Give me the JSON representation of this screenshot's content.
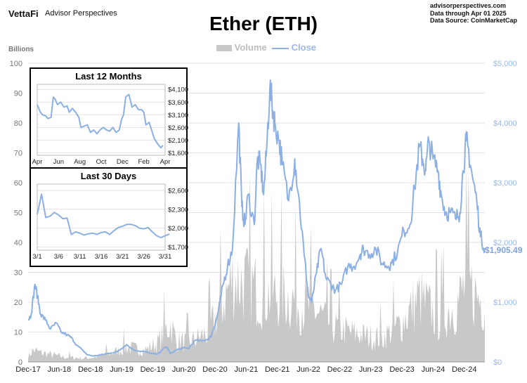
{
  "header": {
    "brand": "VettaFi",
    "brand_sub": "Advisor Perspectives",
    "source_lines": [
      "advisorperspectives.com",
      "Data through Apr 01 2025",
      "Data Source: CoinMarketCap"
    ]
  },
  "colors": {
    "volume": "#c8c8c8",
    "close": "#8cb0e4",
    "right_axis": "#9ab8e6",
    "left_axis": "#777777",
    "grid": "#e2e2e2"
  },
  "last_value_label": "$1,905.49",
  "chart_data": [
    {
      "id": "main",
      "type": "area",
      "title": "Ether (ETH)",
      "legend": [
        "Volume",
        "Close"
      ],
      "legend_position": "top-center",
      "grid": true,
      "ylabel_left": "Billions",
      "ylim_left": [
        0,
        100
      ],
      "yticks_left": [
        "0",
        "10",
        "20",
        "30",
        "40",
        "50",
        "60",
        "70",
        "80",
        "90",
        "100"
      ],
      "ylim_right": [
        0,
        5000
      ],
      "yticks_right": [
        "$0",
        "$1,000",
        "$2,000",
        "$3,000",
        "$4,000",
        "$5,000"
      ],
      "xlim": [
        2017.92,
        2025.25
      ],
      "xticks": [
        {
          "x": 2017.92,
          "label": "Dec-17"
        },
        {
          "x": 2018.42,
          "label": "Jun-18"
        },
        {
          "x": 2018.92,
          "label": "Dec-18"
        },
        {
          "x": 2019.42,
          "label": "Jun-19"
        },
        {
          "x": 2019.92,
          "label": "Dec-19"
        },
        {
          "x": 2020.42,
          "label": "Jun-20"
        },
        {
          "x": 2020.92,
          "label": "Dec-20"
        },
        {
          "x": 2021.42,
          "label": "Jun-21"
        },
        {
          "x": 2021.92,
          "label": "Dec-21"
        },
        {
          "x": 2022.42,
          "label": "Jun-22"
        },
        {
          "x": 2022.92,
          "label": "Dec-22"
        },
        {
          "x": 2023.42,
          "label": "Jun-23"
        },
        {
          "x": 2023.92,
          "label": "Dec-23"
        },
        {
          "x": 2024.42,
          "label": "Jun-24"
        },
        {
          "x": 2024.92,
          "label": "Dec-24"
        }
      ],
      "series": [
        {
          "name": "Close",
          "axis": "right",
          "x": [
            2017.92,
            2017.97,
            2018.03,
            2018.07,
            2018.12,
            2018.2,
            2018.28,
            2018.37,
            2018.45,
            2018.55,
            2018.62,
            2018.7,
            2018.78,
            2018.87,
            2018.96,
            2019.05,
            2019.15,
            2019.25,
            2019.35,
            2019.45,
            2019.5,
            2019.6,
            2019.7,
            2019.8,
            2019.9,
            2020.0,
            2020.1,
            2020.15,
            2020.2,
            2020.3,
            2020.4,
            2020.5,
            2020.6,
            2020.7,
            2020.8,
            2020.85,
            2020.9,
            2020.95,
            2021.0,
            2021.05,
            2021.12,
            2021.2,
            2021.3,
            2021.35,
            2021.4,
            2021.45,
            2021.55,
            2021.6,
            2021.65,
            2021.7,
            2021.75,
            2021.8,
            2021.85,
            2021.88,
            2021.95,
            2022.0,
            2022.1,
            2022.2,
            2022.26,
            2022.35,
            2022.42,
            2022.47,
            2022.55,
            2022.62,
            2022.7,
            2022.78,
            2022.85,
            2022.95,
            2023.05,
            2023.15,
            2023.25,
            2023.3,
            2023.4,
            2023.5,
            2023.6,
            2023.7,
            2023.75,
            2023.85,
            2023.95,
            2024.05,
            2024.12,
            2024.2,
            2024.25,
            2024.3,
            2024.35,
            2024.42,
            2024.5,
            2024.55,
            2024.62,
            2024.7,
            2024.78,
            2024.85,
            2024.9,
            2024.95,
            2024.98,
            2025.05,
            2025.12,
            2025.18,
            2025.25
          ],
          "y": [
            700,
            800,
            1300,
            1100,
            800,
            700,
            550,
            650,
            500,
            450,
            400,
            280,
            210,
            120,
            100,
            110,
            130,
            150,
            170,
            250,
            290,
            210,
            180,
            170,
            140,
            130,
            230,
            250,
            140,
            200,
            230,
            230,
            360,
            350,
            380,
            420,
            570,
            740,
            1000,
            1300,
            1600,
            1900,
            4000,
            2600,
            2300,
            2800,
            2300,
            3400,
            3300,
            2800,
            3600,
            4600,
            4200,
            4000,
            3700,
            3300,
            2700,
            3400,
            2800,
            1800,
            1100,
            1000,
            1500,
            1900,
            1400,
            1300,
            1200,
            1300,
            1600,
            1600,
            1800,
            1900,
            1800,
            1900,
            1650,
            1600,
            1650,
            1850,
            2200,
            2300,
            2900,
            3600,
            3400,
            3200,
            3700,
            3400,
            3200,
            2800,
            2500,
            2500,
            2400,
            2500,
            3200,
            3700,
            3600,
            3100,
            2700,
            2100,
            1905.49
          ]
        },
        {
          "name": "Volume",
          "axis": "left",
          "x": [
            2017.92,
            2018.0,
            2018.1,
            2018.3,
            2018.5,
            2018.8,
            2019.0,
            2019.3,
            2019.5,
            2019.8,
            2020.0,
            2020.2,
            2020.3,
            2020.5,
            2020.8,
            2021.0,
            2021.2,
            2021.4,
            2021.6,
            2021.8,
            2022.0,
            2022.3,
            2022.5,
            2022.8,
            2023.0,
            2023.3,
            2023.6,
            2023.9,
            2024.2,
            2024.5,
            2024.8,
            2024.95,
            2025.1,
            2025.25
          ],
          "y": [
            2,
            5,
            4,
            3,
            2,
            1.5,
            2,
            4,
            6,
            5,
            8,
            16,
            9,
            8,
            12,
            22,
            35,
            33,
            30,
            28,
            28,
            25,
            22,
            15,
            13,
            11,
            10,
            16,
            27,
            18,
            24,
            33,
            28,
            25
          ]
        }
      ]
    },
    {
      "id": "last12",
      "type": "line",
      "title": "Last 12 Months",
      "grid": true,
      "ylim": [
        1500,
        4300
      ],
      "yticks": [
        "$1,600",
        "$2,100",
        "$2,600",
        "$3,100",
        "$3,600",
        "$4,100"
      ],
      "xlim": [
        0,
        12
      ],
      "xticks": [
        {
          "x": 0,
          "label": "Apr"
        },
        {
          "x": 2,
          "label": "Jun"
        },
        {
          "x": 4,
          "label": "Aug"
        },
        {
          "x": 6,
          "label": "Oct"
        },
        {
          "x": 8,
          "label": "Dec"
        },
        {
          "x": 10,
          "label": "Feb"
        },
        {
          "x": 12,
          "label": "Apr"
        }
      ],
      "series": [
        {
          "name": "Close",
          "x": [
            0,
            0.3,
            0.5,
            0.8,
            1.0,
            1.3,
            1.5,
            1.7,
            1.9,
            2.2,
            2.5,
            2.8,
            3.0,
            3.3,
            3.6,
            3.9,
            4.1,
            4.4,
            4.7,
            5.0,
            5.3,
            5.6,
            5.9,
            6.2,
            6.5,
            6.8,
            7.1,
            7.4,
            7.7,
            7.9,
            8.1,
            8.3,
            8.6,
            8.9,
            9.2,
            9.5,
            9.8,
            10.0,
            10.2,
            10.5,
            10.8,
            11.0,
            11.3,
            11.6,
            11.8
          ],
          "y": [
            3500,
            3200,
            3100,
            3050,
            2950,
            3000,
            3800,
            3700,
            3500,
            3600,
            3400,
            3450,
            3200,
            3350,
            3200,
            3000,
            2600,
            2650,
            2700,
            2400,
            2500,
            2350,
            2500,
            2600,
            2500,
            2450,
            2600,
            2400,
            2500,
            2900,
            3100,
            3800,
            3900,
            3400,
            3500,
            3300,
            3300,
            3200,
            2700,
            2800,
            2400,
            2150,
            1950,
            1800,
            1900
          ]
        }
      ]
    },
    {
      "id": "last30",
      "type": "line",
      "title": "Last 30 Days",
      "grid": true,
      "ylim": [
        1650,
        2700
      ],
      "yticks": [
        "$1,700",
        "$2,000",
        "$2,300",
        "$2,600"
      ],
      "xlim": [
        1,
        31
      ],
      "xticks": [
        {
          "x": 1,
          "label": "3/1"
        },
        {
          "x": 6,
          "label": "3/6"
        },
        {
          "x": 11,
          "label": "3/11"
        },
        {
          "x": 16,
          "label": "3/16"
        },
        {
          "x": 21,
          "label": "3/21"
        },
        {
          "x": 26,
          "label": "3/26"
        },
        {
          "x": 31,
          "label": "3/31"
        }
      ],
      "series": [
        {
          "name": "Close",
          "x": [
            1,
            2,
            3,
            4,
            5,
            6,
            7,
            8,
            9,
            10,
            11,
            12,
            13,
            14,
            15,
            16,
            17,
            18,
            19,
            20,
            21,
            22,
            23,
            24,
            25,
            26,
            27,
            28,
            29,
            30,
            31,
            32
          ],
          "y": [
            2220,
            2540,
            2170,
            2190,
            2250,
            2210,
            2150,
            2160,
            1900,
            1940,
            1920,
            1890,
            1910,
            1920,
            1900,
            1930,
            1940,
            1900,
            1960,
            2010,
            2030,
            2060,
            2060,
            2040,
            2000,
            1990,
            2010,
            1940,
            1880,
            1850,
            1880,
            1905.49
          ]
        }
      ]
    }
  ]
}
